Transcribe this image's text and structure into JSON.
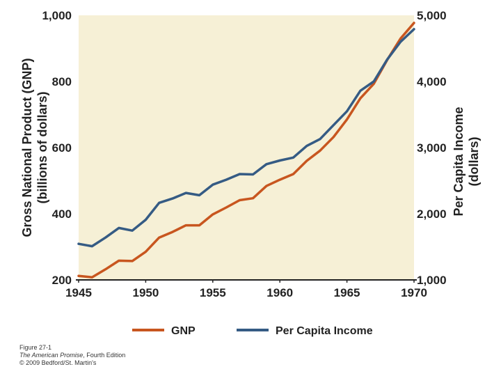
{
  "chart_data": {
    "type": "line",
    "title": "",
    "xlabel": "",
    "ylabel": "Gross National Product (GNP) (billions of dollars)",
    "ylabel_lines": [
      "Gross National Product (GNP)",
      "(billions of dollars)"
    ],
    "y2label": "Per Capita Income (dollars)",
    "y2label_lines": [
      "Per Capita Income",
      "(dollars)"
    ],
    "xlim": [
      1945,
      1970
    ],
    "ylim": [
      200,
      1000
    ],
    "y2lim": [
      1000,
      5000
    ],
    "x_ticks": [
      "1945",
      "1950",
      "1955",
      "1960",
      "1965",
      "1970"
    ],
    "y_ticks": [
      "200",
      "400",
      "600",
      "800",
      "1,000"
    ],
    "y2_ticks": [
      "1,000",
      "2,000",
      "3,000",
      "4,000",
      "5,000"
    ],
    "x": [
      1945,
      1946,
      1947,
      1948,
      1949,
      1950,
      1951,
      1952,
      1953,
      1954,
      1955,
      1956,
      1957,
      1958,
      1959,
      1960,
      1961,
      1962,
      1963,
      1964,
      1965,
      1966,
      1967,
      1968,
      1969,
      1970
    ],
    "series": [
      {
        "name": "GNP",
        "axis": "left",
        "color": "#c8561f",
        "values": [
          212,
          208,
          232,
          258,
          257,
          285,
          328,
          345,
          365,
          365,
          398,
          419,
          441,
          447,
          484,
          503,
          520,
          560,
          591,
          632,
          685,
          749,
          793,
          865,
          930,
          977
        ]
      },
      {
        "name": "Per Capita Income",
        "axis": "right",
        "color": "#355b84",
        "values": [
          1545,
          1510,
          1640,
          1785,
          1745,
          1910,
          2165,
          2230,
          2315,
          2280,
          2440,
          2515,
          2600,
          2595,
          2750,
          2805,
          2850,
          3025,
          3130,
          3340,
          3550,
          3860,
          4000,
          4330,
          4600,
          4790
        ]
      }
    ],
    "legend": "bottom-center",
    "grid": false,
    "plot_background": "#f6f0d6"
  },
  "caption": {
    "figure_label": "Figure 27-1",
    "book_title": "The American Promise",
    "edition": ", Fourth Edition",
    "copyright": "© 2009 Bedford/St. Martin's"
  }
}
